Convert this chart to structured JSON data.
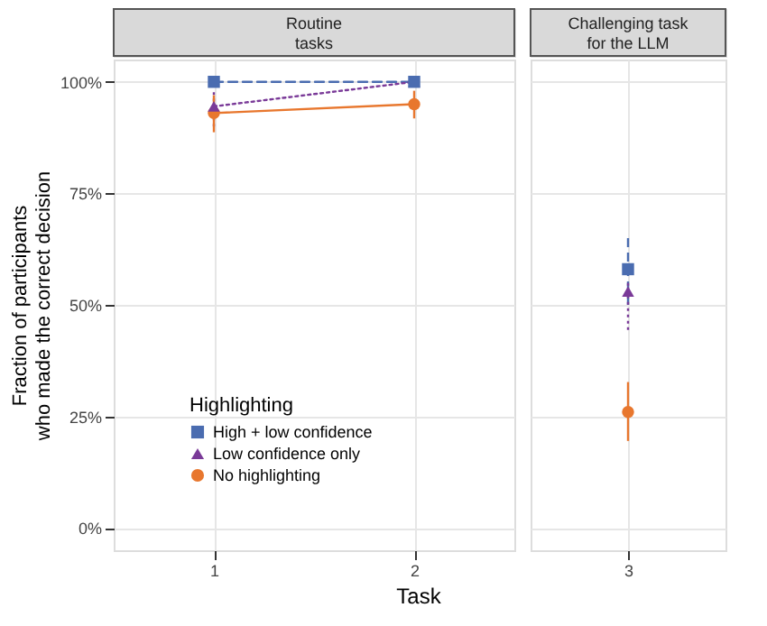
{
  "chart_data": [
    {
      "type": "line",
      "title": "Routine\ntasks",
      "xlabel": "Task",
      "ylabel": "Fraction of participants\nwho made the correct decision",
      "legend_title": "Highlighting",
      "categories": [
        "1",
        "2"
      ],
      "ylim": [
        -5,
        105
      ],
      "yticks": [
        {
          "value": 0,
          "label": "0%"
        },
        {
          "value": 25,
          "label": "25%"
        },
        {
          "value": 50,
          "label": "50%"
        },
        {
          "value": 75,
          "label": "75%"
        },
        {
          "value": 100,
          "label": "100%"
        }
      ],
      "grid": true,
      "legend": "bottom left",
      "series": [
        {
          "name": "High + low confidence",
          "color": "#4a6cb0",
          "marker": "square",
          "line_style": "dashed",
          "values": [
            100,
            100
          ]
        },
        {
          "name": "Low confidence only",
          "color": "#7a3a98",
          "marker": "triangle",
          "line_style": "dotted",
          "values": [
            94.5,
            100
          ],
          "errors": [
            [
              90,
              98
            ],
            null
          ]
        },
        {
          "name": "No highlighting",
          "color": "#e8772e",
          "marker": "circle",
          "line_style": "solid",
          "values": [
            93,
            95
          ],
          "errors": [
            [
              88.7,
              97
            ],
            [
              91.8,
              98
            ]
          ]
        }
      ]
    },
    {
      "type": "line",
      "title": "Challenging task\nfor the LLM",
      "categories": [
        "3"
      ],
      "ylim": [
        -5,
        105
      ],
      "yticks": [
        0,
        25,
        50,
        75,
        100
      ],
      "grid": true,
      "tick_labels": "x",
      "series": [
        {
          "color": "#4a6cb0",
          "marker": "square",
          "line_style": "dashed",
          "values": [
            58
          ],
          "errors": [
            [
              50,
              66
            ]
          ]
        },
        {
          "color": "#7a3a98",
          "marker": "triangle",
          "line_style": "dotted",
          "values": [
            53
          ],
          "errors": [
            [
              44.4,
              55
            ]
          ]
        },
        {
          "color": "#e8772e",
          "marker": "circle",
          "line_style": "solid",
          "values": [
            26
          ],
          "errors": [
            [
              19.5,
              32.7
            ]
          ]
        }
      ]
    }
  ]
}
